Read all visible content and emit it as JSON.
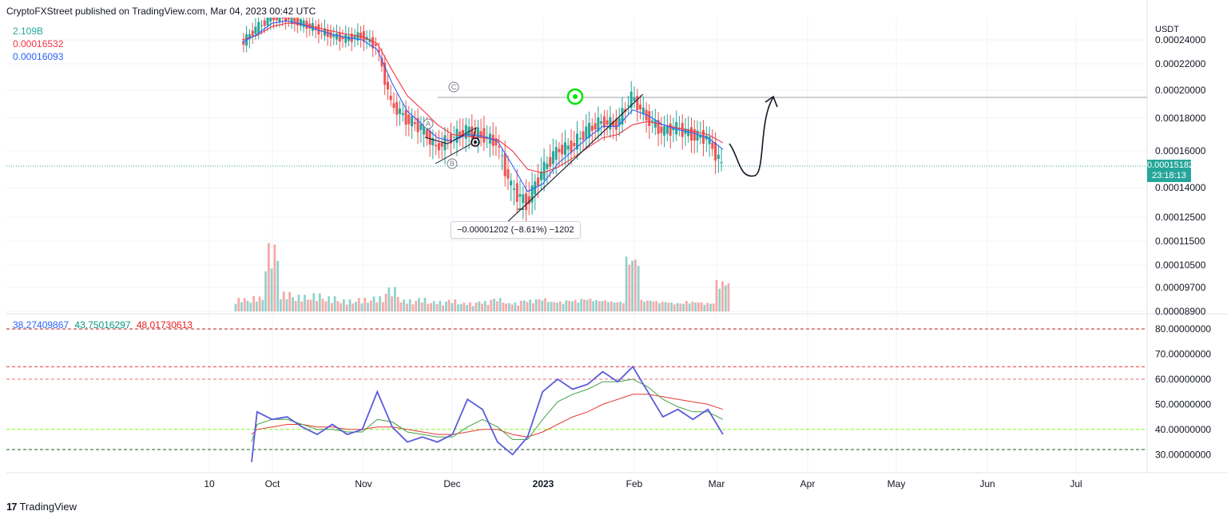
{
  "header": {
    "text": "CryptoFXStreet published on TradingView.com, Mar 04, 2023 00:42 UTC"
  },
  "legend_top": [
    {
      "text": "2.109B",
      "color": "#26a69a"
    },
    {
      "text": "0.00016532",
      "color": "#f23645"
    },
    {
      "text": "0.00016093",
      "color": "#2962ff"
    }
  ],
  "legend_indicator": [
    {
      "text": "38.27409867",
      "color": "#2962ff"
    },
    {
      "text": "43.75016297",
      "color": "#089981"
    },
    {
      "text": "48.01730613",
      "color": "#e91e1e"
    }
  ],
  "price_tag": {
    "price": "0.00015182",
    "countdown": "23:18:13"
  },
  "measure_label": "−0.00001202 (−8.61%) −1202",
  "wave_labels": [
    "C",
    "A",
    "B"
  ],
  "footer": {
    "logo": "17",
    "text": "TradingView"
  },
  "colors": {
    "up": "#26a69a",
    "down": "#ef5350",
    "ma_fast": "#2962ff",
    "ma_slow": "#f23645",
    "rsi": "#5b5bdc"
  },
  "chart_data": {
    "type": "line",
    "title": "",
    "price_axis": {
      "unit": "USDT",
      "ticks": [
        "0.00024000",
        "0.00022000",
        "0.00020000",
        "0.00018000",
        "0.00016000",
        "0.00014000",
        "0.00012500",
        "0.00011500",
        "0.00010500",
        "0.00009700",
        "0.00008900"
      ]
    },
    "x_axis": {
      "ticks": [
        "10",
        "Oct",
        "Nov",
        "Dec",
        "2023",
        "Feb",
        "Mar",
        "Apr",
        "May",
        "Jun",
        "Jul"
      ]
    },
    "price_series": {
      "x": [
        "Sep 20",
        "Sep 25",
        "Sep 30",
        "Oct 05",
        "Oct 10",
        "Oct 15",
        "Oct 20",
        "Oct 25",
        "Oct 30",
        "Nov 05",
        "Nov 10",
        "Nov 15",
        "Nov 20",
        "Nov 25",
        "Nov 30",
        "Dec 05",
        "Dec 10",
        "Dec 15",
        "Dec 20",
        "Dec 25",
        "Dec 30",
        "Jan 05",
        "Jan 10",
        "Jan 15",
        "Jan 20",
        "Jan 25",
        "Jan 31",
        "Feb 05",
        "Feb 10",
        "Feb 15",
        "Feb 20",
        "Feb 25",
        "Mar 03"
      ],
      "close": [
        0.000236,
        0.00025,
        0.00026,
        0.00026,
        0.000255,
        0.00025,
        0.000244,
        0.000241,
        0.000244,
        0.000235,
        0.00019,
        0.00018,
        0.000174,
        0.000162,
        0.000168,
        0.000172,
        0.00017,
        0.000165,
        0.00014,
        0.000132,
        0.000148,
        0.00016,
        0.000163,
        0.000172,
        0.000178,
        0.000176,
        0.000195,
        0.000181,
        0.000172,
        0.000174,
        0.00017,
        0.000168,
        0.000152
      ],
      "ma_fast": [
        0.000238,
        0.000245,
        0.000255,
        0.000257,
        0.000254,
        0.000249,
        0.000245,
        0.000242,
        0.00024,
        0.000232,
        0.000205,
        0.000185,
        0.000176,
        0.000168,
        0.000166,
        0.00017,
        0.000169,
        0.000166,
        0.000152,
        0.000138,
        0.000142,
        0.000153,
        0.00016,
        0.000168,
        0.000175,
        0.000175,
        0.000186,
        0.000182,
        0.000176,
        0.000173,
        0.000171,
        0.000168,
        0.000161
      ],
      "ma_slow": [
        0.00024,
        0.000244,
        0.000252,
        0.000255,
        0.000254,
        0.000251,
        0.000248,
        0.000245,
        0.000243,
        0.000237,
        0.000215,
        0.000196,
        0.000186,
        0.000176,
        0.00017,
        0.000169,
        0.000168,
        0.000167,
        0.00016,
        0.00015,
        0.000148,
        0.000151,
        0.000156,
        0.000162,
        0.000168,
        0.00017,
        0.000176,
        0.000178,
        0.000176,
        0.000174,
        0.000172,
        0.00017,
        0.000165
      ]
    },
    "volume": {
      "values": [
        0.9,
        1.0,
        4.5,
        1.3,
        1.1,
        1.2,
        1.0,
        0.8,
        0.9,
        1.0,
        1.6,
        0.8,
        0.9,
        0.7,
        0.8,
        0.6,
        0.7,
        0.9,
        0.6,
        0.8,
        0.9,
        0.7,
        0.8,
        0.9,
        0.8,
        0.7,
        3.8,
        0.8,
        0.7,
        0.6,
        0.7,
        0.6,
        2.1
      ]
    },
    "rsi": {
      "axis_ticks": [
        "80.00000000",
        "70.00000000",
        "60.00000000",
        "50.00000000",
        "40.00000000",
        "30.00000000"
      ],
      "levels": [
        80,
        65,
        60,
        40,
        32
      ],
      "values": [
        27,
        47,
        44,
        45,
        41,
        38,
        42,
        38,
        40,
        55,
        41,
        35,
        37,
        35,
        38,
        52,
        48,
        35,
        30,
        37,
        55,
        60,
        56,
        58,
        63,
        59,
        65,
        55,
        45,
        48,
        44,
        48,
        38
      ],
      "signal": [
        35,
        42,
        44,
        44,
        42,
        40,
        40,
        39,
        39,
        44,
        43,
        39,
        38,
        37,
        37,
        41,
        44,
        41,
        36,
        36,
        44,
        51,
        54,
        56,
        59,
        59,
        60,
        57,
        52,
        49,
        47,
        47,
        44
      ],
      "ma": [
        38,
        40,
        41,
        42,
        42,
        41,
        41,
        40,
        40,
        41,
        41,
        40,
        39,
        38,
        38,
        39,
        40,
        40,
        38,
        37,
        39,
        42,
        45,
        47,
        50,
        52,
        54,
        54,
        53,
        52,
        51,
        50,
        48
      ]
    }
  }
}
